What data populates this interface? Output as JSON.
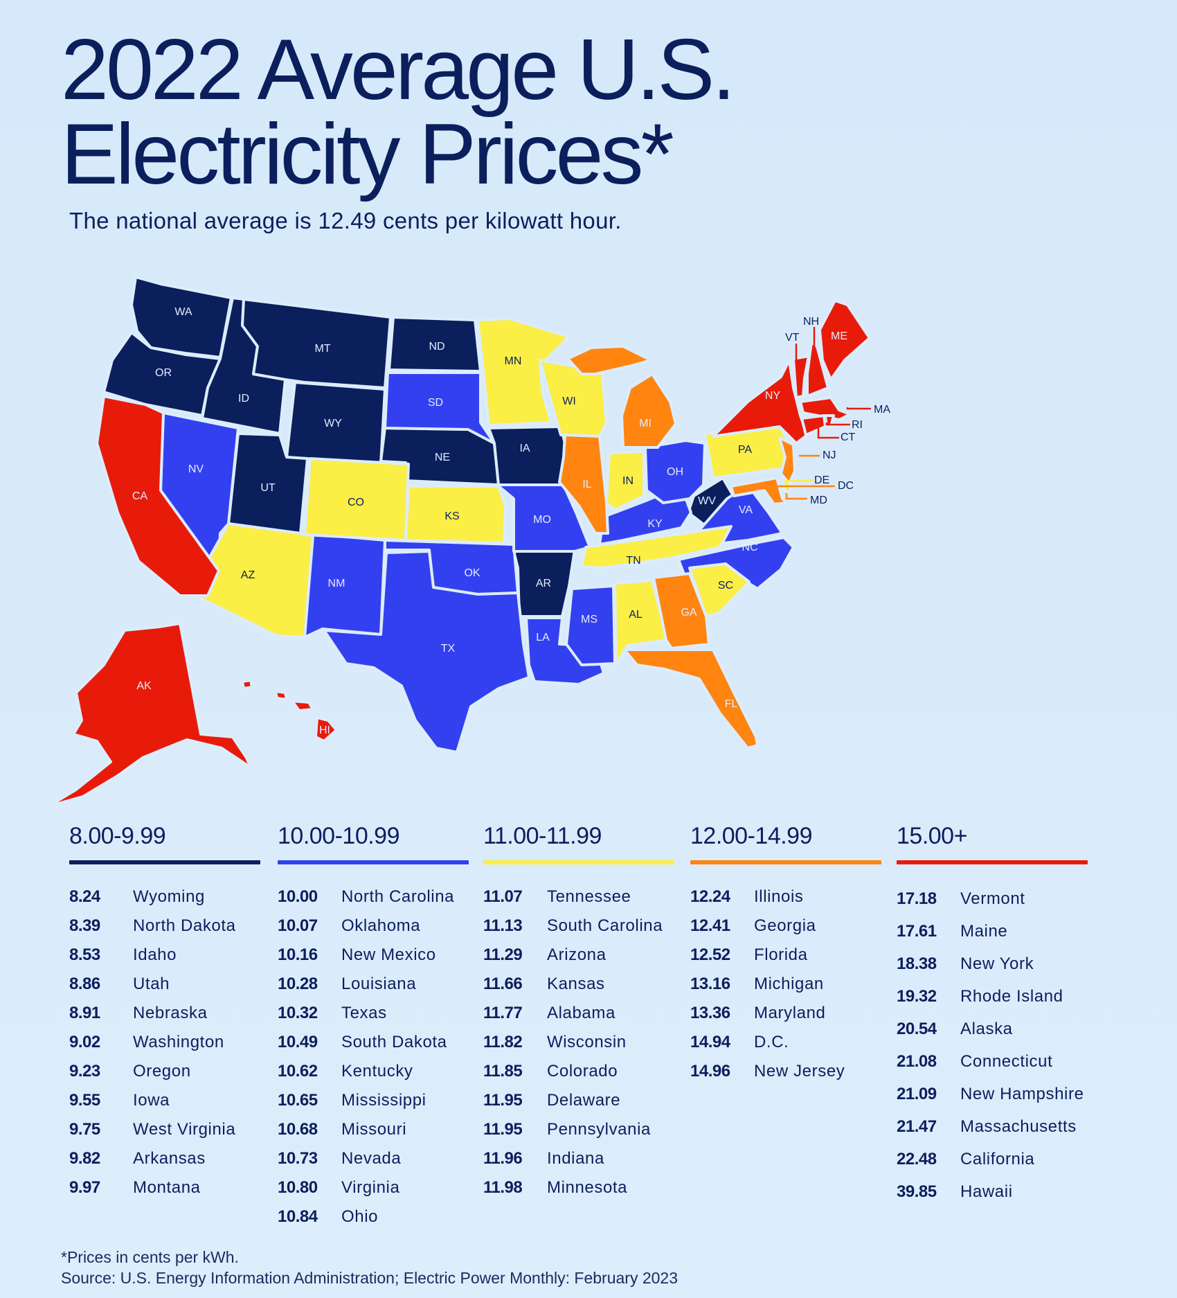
{
  "header": {
    "title_line1": "2022 Average U.S.",
    "title_line2": "Electricity Prices*",
    "subtitle": "The national average is 12.49 cents per kilowatt hour."
  },
  "colors": {
    "background": "#d9ecfb",
    "tier_8_00_9_99": "#0b1f5c",
    "tier_10_00_10_99": "#3340f0",
    "tier_11_00_11_99": "#fbee45",
    "tier_12_00_14_99": "#ff8410",
    "tier_15_00_plus": "#e81b0b"
  },
  "legend": {
    "tiers": [
      {
        "range": "8.00-9.99",
        "color": "#0b1f5c",
        "entries": [
          {
            "price": "8.24",
            "state": "Wyoming"
          },
          {
            "price": "8.39",
            "state": "North Dakota"
          },
          {
            "price": "8.53",
            "state": "Idaho"
          },
          {
            "price": "8.86",
            "state": "Utah"
          },
          {
            "price": "8.91",
            "state": "Nebraska"
          },
          {
            "price": "9.02",
            "state": "Washington"
          },
          {
            "price": "9.23",
            "state": "Oregon"
          },
          {
            "price": "9.55",
            "state": "Iowa"
          },
          {
            "price": "9.75",
            "state": "West Virginia"
          },
          {
            "price": "9.82",
            "state": "Arkansas"
          },
          {
            "price": "9.97",
            "state": "Montana"
          }
        ]
      },
      {
        "range": "10.00-10.99",
        "color": "#3340f0",
        "entries": [
          {
            "price": "10.00",
            "state": "North Carolina"
          },
          {
            "price": "10.07",
            "state": "Oklahoma"
          },
          {
            "price": "10.16",
            "state": "New Mexico"
          },
          {
            "price": "10.28",
            "state": "Louisiana"
          },
          {
            "price": "10.32",
            "state": "Texas"
          },
          {
            "price": "10.49",
            "state": "South Dakota"
          },
          {
            "price": "10.62",
            "state": "Kentucky"
          },
          {
            "price": "10.65",
            "state": "Mississippi"
          },
          {
            "price": "10.68",
            "state": "Missouri"
          },
          {
            "price": "10.73",
            "state": "Nevada"
          },
          {
            "price": "10.80",
            "state": "Virginia"
          },
          {
            "price": "10.84",
            "state": "Ohio"
          }
        ]
      },
      {
        "range": "11.00-11.99",
        "color": "#fbee45",
        "entries": [
          {
            "price": "11.07",
            "state": "Tennessee"
          },
          {
            "price": "11.13",
            "state": "South Carolina"
          },
          {
            "price": "11.29",
            "state": "Arizona"
          },
          {
            "price": "11.66",
            "state": "Kansas"
          },
          {
            "price": "11.77",
            "state": "Alabama"
          },
          {
            "price": "11.82",
            "state": "Wisconsin"
          },
          {
            "price": "11.85",
            "state": "Colorado"
          },
          {
            "price": "11.95",
            "state": "Delaware"
          },
          {
            "price": "11.95",
            "state": "Pennsylvania"
          },
          {
            "price": "11.96",
            "state": "Indiana"
          },
          {
            "price": "11.98",
            "state": "Minnesota"
          }
        ]
      },
      {
        "range": "12.00-14.99",
        "color": "#ff8410",
        "entries": [
          {
            "price": "12.24",
            "state": "Illinois"
          },
          {
            "price": "12.41",
            "state": "Georgia"
          },
          {
            "price": "12.52",
            "state": "Florida"
          },
          {
            "price": "13.16",
            "state": "Michigan"
          },
          {
            "price": "13.36",
            "state": "Maryland"
          },
          {
            "price": "14.94",
            "state": "D.C."
          },
          {
            "price": "14.96",
            "state": "New Jersey"
          }
        ]
      },
      {
        "range": "15.00+",
        "color": "#e81b0b",
        "entries": [
          {
            "price": "17.18",
            "state": "Vermont"
          },
          {
            "price": "17.61",
            "state": "Maine"
          },
          {
            "price": "18.38",
            "state": "New York"
          },
          {
            "price": "19.32",
            "state": "Rhode Island"
          },
          {
            "price": "20.54",
            "state": "Alaska"
          },
          {
            "price": "21.08",
            "state": "Connecticut"
          },
          {
            "price": "21.09",
            "state": "New Hampshire"
          },
          {
            "price": "21.47",
            "state": "Massachusetts"
          },
          {
            "price": "22.48",
            "state": "California"
          },
          {
            "price": "39.85",
            "state": "Hawaii"
          }
        ]
      }
    ]
  },
  "map_labels": [
    "WA",
    "OR",
    "CA",
    "NV",
    "ID",
    "MT",
    "WY",
    "UT",
    "AZ",
    "CO",
    "NM",
    "ND",
    "SD",
    "NE",
    "KS",
    "OK",
    "TX",
    "MN",
    "IA",
    "MO",
    "AR",
    "LA",
    "WI",
    "IL",
    "MI",
    "IN",
    "OH",
    "KY",
    "TN",
    "MS",
    "AL",
    "GA",
    "FL",
    "SC",
    "NC",
    "VA",
    "WV",
    "PA",
    "NY",
    "VT",
    "NH",
    "ME",
    "MA",
    "RI",
    "CT",
    "NJ",
    "DE",
    "DC",
    "MD",
    "AK",
    "HI"
  ],
  "footer": {
    "note": "*Prices in cents per kWh.",
    "source": "Source: U.S. Energy Information Administration; Electric Power Monthly: February 2023"
  },
  "chart_data": {
    "type": "choropleth-map",
    "title": "2022 Average U.S. Electricity Prices*",
    "subtitle": "The national average is 12.49 cents per kilowatt hour.",
    "unit": "cents per kWh",
    "national_average": 12.49,
    "bins": [
      {
        "label": "8.00-9.99",
        "min": 8.0,
        "max": 9.99,
        "color": "#0b1f5c"
      },
      {
        "label": "10.00-10.99",
        "min": 10.0,
        "max": 10.99,
        "color": "#3340f0"
      },
      {
        "label": "11.00-11.99",
        "min": 11.0,
        "max": 11.99,
        "color": "#fbee45"
      },
      {
        "label": "12.00-14.99",
        "min": 12.0,
        "max": 14.99,
        "color": "#ff8410"
      },
      {
        "label": "15.00+",
        "min": 15.0,
        "max": null,
        "color": "#e81b0b"
      }
    ],
    "values": {
      "WY": 8.24,
      "ND": 8.39,
      "ID": 8.53,
      "UT": 8.86,
      "NE": 8.91,
      "WA": 9.02,
      "OR": 9.23,
      "IA": 9.55,
      "WV": 9.75,
      "AR": 9.82,
      "MT": 9.97,
      "NC": 10.0,
      "OK": 10.07,
      "NM": 10.16,
      "LA": 10.28,
      "TX": 10.32,
      "SD": 10.49,
      "KY": 10.62,
      "MS": 10.65,
      "MO": 10.68,
      "NV": 10.73,
      "VA": 10.8,
      "OH": 10.84,
      "TN": 11.07,
      "SC": 11.13,
      "AZ": 11.29,
      "KS": 11.66,
      "AL": 11.77,
      "WI": 11.82,
      "CO": 11.85,
      "DE": 11.95,
      "PA": 11.95,
      "IN": 11.96,
      "MN": 11.98,
      "IL": 12.24,
      "GA": 12.41,
      "FL": 12.52,
      "MI": 13.16,
      "MD": 13.36,
      "DC": 14.94,
      "NJ": 14.96,
      "VT": 17.18,
      "ME": 17.61,
      "NY": 18.38,
      "RI": 19.32,
      "AK": 20.54,
      "CT": 21.08,
      "NH": 21.09,
      "MA": 21.47,
      "CA": 22.48,
      "HI": 39.85
    },
    "footnote": "*Prices in cents per kWh.",
    "source": "U.S. Energy Information Administration; Electric Power Monthly: February 2023"
  }
}
